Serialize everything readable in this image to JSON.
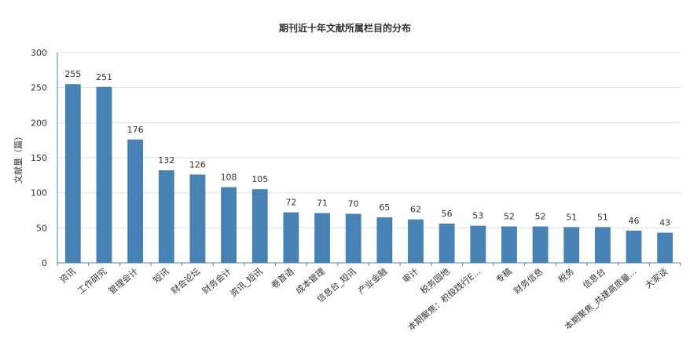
{
  "chart_data": {
    "type": "bar",
    "title": "期刊近十年文献所属栏目的分布",
    "ylabel": "文献量（篇）",
    "xlabel": "",
    "ylim": [
      0,
      300
    ],
    "yticks": [
      0,
      50,
      100,
      150,
      200,
      250,
      300
    ],
    "grid": true,
    "categories": [
      "资讯",
      "工作研究",
      "管理会计",
      "短讯",
      "财会论坛",
      "财务会计",
      "资讯_短讯",
      "卷首语",
      "成本管理",
      "信息台_短讯",
      "产业金融",
      "审计",
      "税务园地",
      "本期聚焦：积极践行E...",
      "专稿",
      "财务信息",
      "税务",
      "信息台",
      "本期聚焦_共建高质量...",
      "大家谈"
    ],
    "values": [
      255,
      251,
      176,
      132,
      126,
      108,
      105,
      72,
      71,
      70,
      65,
      62,
      56,
      53,
      52,
      52,
      51,
      51,
      46,
      43
    ],
    "bar_color": "#4682b4"
  }
}
